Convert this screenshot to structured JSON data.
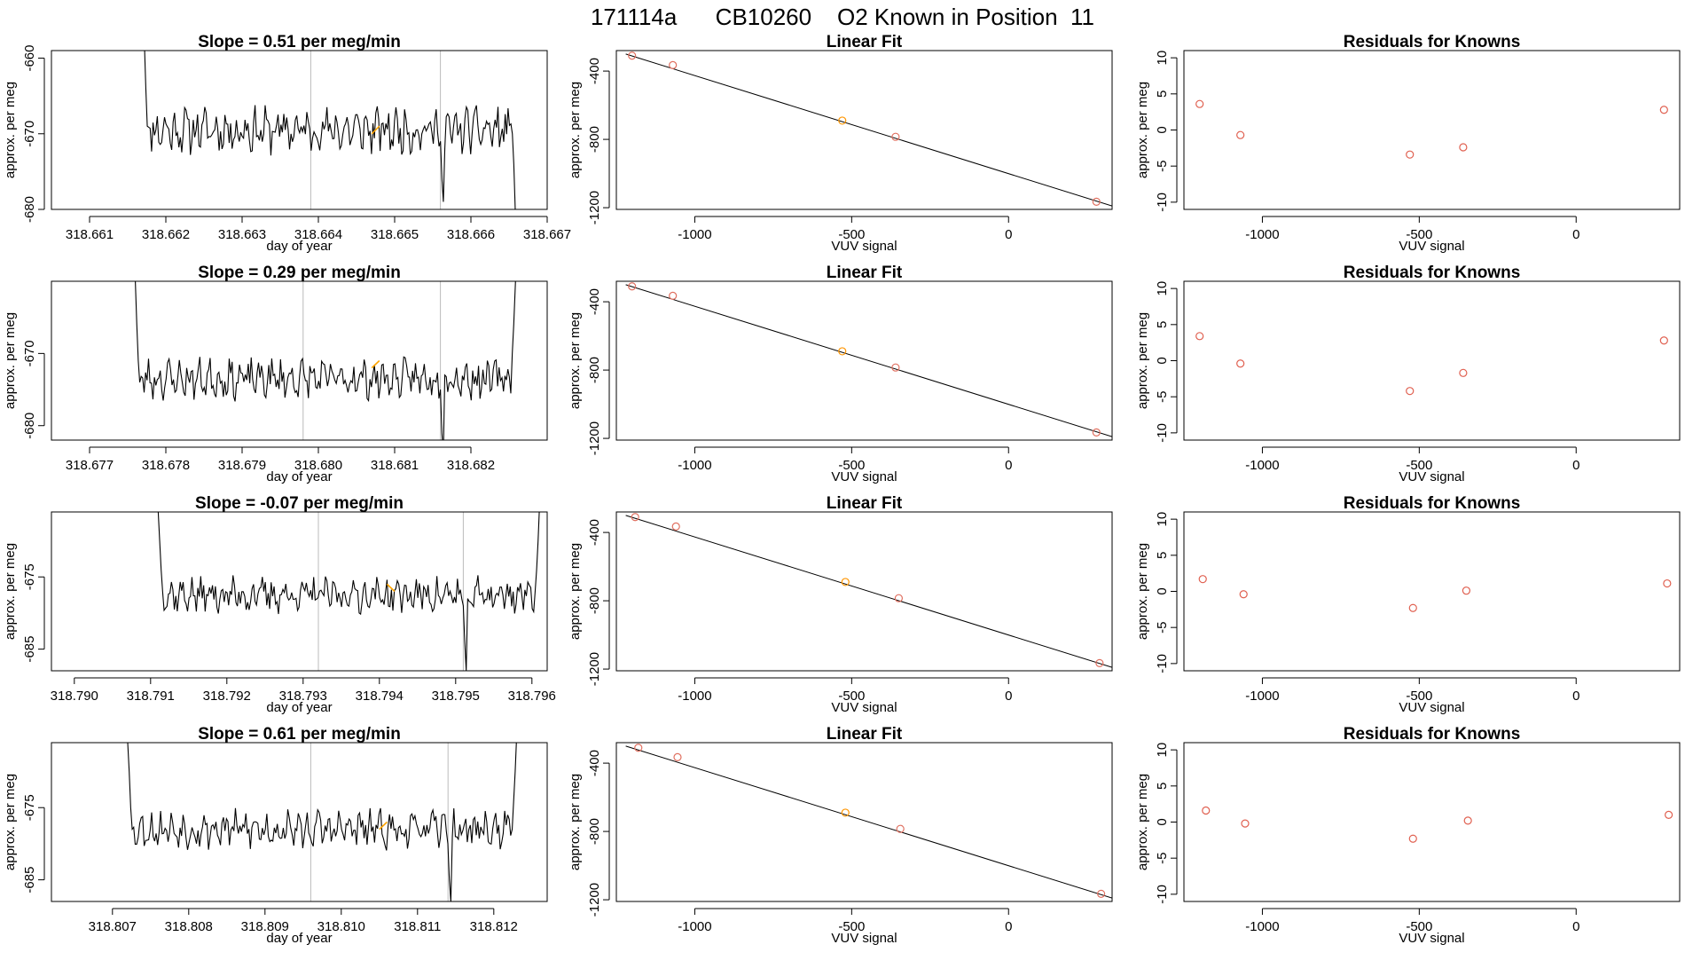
{
  "page": {
    "title": "171114a      CB10260    O2 Known in Position  11"
  },
  "colors": {
    "line": "#000000",
    "frame": "#000000",
    "marker_line": "#bbbbbb",
    "highlight": "#ffa500",
    "known_point": "#e07060",
    "sample_point": "#ff9500",
    "residual_point": "#e06050"
  },
  "chart_data": [
    {
      "type": "line",
      "panel": "timeseries",
      "title": "Slope =  0.51  per meg/min",
      "xlabel": "day of year",
      "ylabel": "approx. per meg",
      "xlim": [
        318.6605,
        318.667
      ],
      "ylim": [
        -680,
        -659
      ],
      "xticks": [
        318.661,
        318.662,
        318.663,
        318.664,
        318.665,
        318.666,
        318.667
      ],
      "xtick_labels": [
        "318.661",
        "318.662",
        "318.663",
        "318.664",
        "318.665",
        "318.666",
        "318.667"
      ],
      "yticks": [
        -660,
        -670,
        -680
      ],
      "ytick_labels": [
        "-660",
        "-670",
        "-680"
      ],
      "vlines": [
        318.6639,
        318.6656
      ],
      "x_start": 318.6617,
      "x_end": 318.6666,
      "baseline": -669.5,
      "noise": 2.2,
      "seed": 11,
      "start_values": [
        -655,
        -658,
        -664,
        -669
      ],
      "end_values": [
        -670,
        -674,
        -680,
        -685
      ],
      "dip_x": 318.6656,
      "dip_values": [
        -671,
        -676,
        -679,
        -672
      ],
      "highlight_x": [
        318.6647,
        318.6648
      ],
      "highlight_y": [
        -670,
        -669
      ]
    },
    {
      "type": "scatter",
      "panel": "linearfit",
      "title": "Linear Fit",
      "xlabel": "VUV signal",
      "ylabel": "approx. per meg",
      "xlim": [
        -1250,
        330
      ],
      "ylim": [
        -1210,
        -280
      ],
      "xticks": [
        -1000,
        -500,
        0
      ],
      "xtick_labels": [
        "-1000",
        "-500",
        "0"
      ],
      "yticks": [
        -400,
        -800,
        -1200
      ],
      "ytick_labels": [
        "-400",
        "-800",
        "-1200"
      ],
      "fit_line": {
        "x": [
          -1220,
          330
        ],
        "y": [
          -300,
          -1190
        ]
      },
      "points": [
        {
          "x": -1200,
          "y": -310,
          "kind": "known"
        },
        {
          "x": -1070,
          "y": -365,
          "kind": "known"
        },
        {
          "x": -530,
          "y": -690,
          "kind": "sample"
        },
        {
          "x": -360,
          "y": -785,
          "kind": "known"
        },
        {
          "x": 280,
          "y": -1165,
          "kind": "known"
        }
      ]
    },
    {
      "type": "scatter",
      "panel": "residuals",
      "title": "Residuals for Knowns",
      "xlabel": "VUV signal",
      "ylabel": "approx. per meg",
      "xlim": [
        -1250,
        330
      ],
      "ylim": [
        -11,
        11
      ],
      "xticks": [
        -1000,
        -500,
        0
      ],
      "xtick_labels": [
        "-1000",
        "-500",
        "0"
      ],
      "yticks": [
        10,
        5,
        0,
        -5,
        -10
      ],
      "ytick_labels": [
        "10",
        "5",
        "0",
        "-5",
        "-10"
      ],
      "x": [
        -1200,
        -1070,
        -530,
        -360,
        280
      ],
      "y": [
        3.6,
        -0.7,
        -3.4,
        -2.4,
        2.8
      ]
    },
    {
      "type": "line",
      "panel": "timeseries",
      "title": "Slope =  0.29  per meg/min",
      "xlabel": "day of year",
      "ylabel": "approx. per meg",
      "xlim": [
        318.6765,
        318.683
      ],
      "ylim": [
        -682,
        -660
      ],
      "xticks": [
        318.677,
        318.678,
        318.679,
        318.68,
        318.681,
        318.682
      ],
      "xtick_labels": [
        "318.677",
        "318.678",
        "318.679",
        "318.680",
        "318.681",
        "318.682"
      ],
      "yticks": [
        -670,
        -680
      ],
      "ytick_labels": [
        "-670",
        "-680"
      ],
      "vlines": [
        318.6798,
        318.6816
      ],
      "x_start": 318.6776,
      "x_end": 318.6826,
      "baseline": -673.5,
      "noise": 2.0,
      "seed": 23,
      "start_values": [
        -660,
        -666,
        -671,
        -674
      ],
      "end_values": [
        -670,
        -666,
        -661,
        -656
      ],
      "dip_x": 318.6816,
      "dip_values": [
        -675,
        -681,
        -684,
        -673
      ],
      "highlight_x": [
        318.6807,
        318.6808
      ],
      "highlight_y": [
        -672,
        -671
      ]
    },
    {
      "type": "scatter",
      "panel": "linearfit",
      "title": "Linear Fit",
      "xlabel": "VUV signal",
      "ylabel": "approx. per meg",
      "xlim": [
        -1250,
        330
      ],
      "ylim": [
        -1210,
        -280
      ],
      "xticks": [
        -1000,
        -500,
        0
      ],
      "xtick_labels": [
        "-1000",
        "-500",
        "0"
      ],
      "yticks": [
        -400,
        -800,
        -1200
      ],
      "ytick_labels": [
        "-400",
        "-800",
        "-1200"
      ],
      "fit_line": {
        "x": [
          -1220,
          330
        ],
        "y": [
          -300,
          -1190
        ]
      },
      "points": [
        {
          "x": -1200,
          "y": -310,
          "kind": "known"
        },
        {
          "x": -1070,
          "y": -365,
          "kind": "known"
        },
        {
          "x": -530,
          "y": -690,
          "kind": "sample"
        },
        {
          "x": -360,
          "y": -785,
          "kind": "known"
        },
        {
          "x": 280,
          "y": -1165,
          "kind": "known"
        }
      ]
    },
    {
      "type": "scatter",
      "panel": "residuals",
      "title": "Residuals for Knowns",
      "xlabel": "VUV signal",
      "ylabel": "approx. per meg",
      "xlim": [
        -1250,
        330
      ],
      "ylim": [
        -11,
        11
      ],
      "xticks": [
        -1000,
        -500,
        0
      ],
      "xtick_labels": [
        "-1000",
        "-500",
        "0"
      ],
      "yticks": [
        10,
        5,
        0,
        -5,
        -10
      ],
      "ytick_labels": [
        "10",
        "5",
        "0",
        "-5",
        "-10"
      ],
      "x": [
        -1200,
        -1070,
        -530,
        -360,
        280
      ],
      "y": [
        3.4,
        -0.4,
        -4.2,
        -1.7,
        2.8
      ]
    },
    {
      "type": "line",
      "panel": "timeseries",
      "title": "Slope =  -0.07  per meg/min",
      "xlabel": "day of year",
      "ylabel": "approx. per meg",
      "xlim": [
        318.7897,
        318.7962
      ],
      "ylim": [
        -688,
        -666
      ],
      "xticks": [
        318.79,
        318.791,
        318.792,
        318.793,
        318.794,
        318.795,
        318.796
      ],
      "xtick_labels": [
        "318.790",
        "318.791",
        "318.792",
        "318.793",
        "318.794",
        "318.795",
        "318.796"
      ],
      "yticks": [
        -675,
        -685
      ],
      "ytick_labels": [
        "-675",
        "-685"
      ],
      "vlines": [
        318.7932,
        318.7951
      ],
      "x_start": 318.7911,
      "x_end": 318.7961,
      "baseline": -677.5,
      "noise": 1.8,
      "seed": 37,
      "start_values": [
        -666,
        -670,
        -674,
        -677
      ],
      "end_values": [
        -677,
        -674,
        -670,
        -665
      ],
      "dip_x": 318.7951,
      "dip_values": [
        -679,
        -684,
        -688,
        -678
      ],
      "highlight_x": [
        318.7941,
        318.7942
      ],
      "highlight_y": [
        -676,
        -677
      ]
    },
    {
      "type": "scatter",
      "panel": "linearfit",
      "title": "Linear Fit",
      "xlabel": "VUV signal",
      "ylabel": "approx. per meg",
      "xlim": [
        -1250,
        330
      ],
      "ylim": [
        -1210,
        -280
      ],
      "xticks": [
        -1000,
        -500,
        0
      ],
      "xtick_labels": [
        "-1000",
        "-500",
        "0"
      ],
      "yticks": [
        -400,
        -800,
        -1200
      ],
      "ytick_labels": [
        "-400",
        "-800",
        "-1200"
      ],
      "fit_line": {
        "x": [
          -1220,
          330
        ],
        "y": [
          -300,
          -1190
        ]
      },
      "points": [
        {
          "x": -1190,
          "y": -310,
          "kind": "known"
        },
        {
          "x": -1060,
          "y": -365,
          "kind": "known"
        },
        {
          "x": -520,
          "y": -690,
          "kind": "sample"
        },
        {
          "x": -350,
          "y": -785,
          "kind": "known"
        },
        {
          "x": 290,
          "y": -1165,
          "kind": "known"
        }
      ]
    },
    {
      "type": "scatter",
      "panel": "residuals",
      "title": "Residuals for Knowns",
      "xlabel": "VUV signal",
      "ylabel": "approx. per meg",
      "xlim": [
        -1250,
        330
      ],
      "ylim": [
        -11,
        11
      ],
      "xticks": [
        -1000,
        -500,
        0
      ],
      "xtick_labels": [
        "-1000",
        "-500",
        "0"
      ],
      "yticks": [
        10,
        5,
        0,
        -5,
        -10
      ],
      "ytick_labels": [
        "10",
        "5",
        "0",
        "-5",
        "-10"
      ],
      "x": [
        -1190,
        -1060,
        -520,
        -350,
        290
      ],
      "y": [
        1.7,
        -0.4,
        -2.3,
        0.1,
        1.1
      ]
    },
    {
      "type": "line",
      "panel": "timeseries",
      "title": "Slope =  0.61  per meg/min",
      "xlabel": "day of year",
      "ylabel": "approx. per meg",
      "xlim": [
        318.8062,
        318.8127
      ],
      "ylim": [
        -688,
        -666
      ],
      "xticks": [
        318.807,
        318.808,
        318.809,
        318.81,
        318.811,
        318.812
      ],
      "xtick_labels": [
        "318.807",
        "318.808",
        "318.809",
        "318.810",
        "318.811",
        "318.812"
      ],
      "yticks": [
        -675,
        -685
      ],
      "ytick_labels": [
        "-675",
        "-685"
      ],
      "vlines": [
        318.8096,
        318.8114
      ],
      "x_start": 318.8072,
      "x_end": 318.8123,
      "baseline": -678,
      "noise": 1.9,
      "seed": 53,
      "start_values": [
        -666,
        -670,
        -675,
        -678
      ],
      "end_values": [
        -678,
        -674,
        -670,
        -665
      ],
      "dip_x": 318.8114,
      "dip_values": [
        -680,
        -685,
        -688,
        -679
      ],
      "highlight_x": [
        318.8105,
        318.8106
      ],
      "highlight_y": [
        -678,
        -677
      ]
    },
    {
      "type": "scatter",
      "panel": "linearfit",
      "title": "Linear Fit",
      "xlabel": "VUV signal",
      "ylabel": "approx. per meg",
      "xlim": [
        -1250,
        330
      ],
      "ylim": [
        -1210,
        -280
      ],
      "xticks": [
        -1000,
        -500,
        0
      ],
      "xtick_labels": [
        "-1000",
        "-500",
        "0"
      ],
      "yticks": [
        -400,
        -800,
        -1200
      ],
      "ytick_labels": [
        "-400",
        "-800",
        "-1200"
      ],
      "fit_line": {
        "x": [
          -1220,
          330
        ],
        "y": [
          -300,
          -1190
        ]
      },
      "points": [
        {
          "x": -1180,
          "y": -310,
          "kind": "known"
        },
        {
          "x": -1055,
          "y": -365,
          "kind": "known"
        },
        {
          "x": -520,
          "y": -690,
          "kind": "sample"
        },
        {
          "x": -345,
          "y": -785,
          "kind": "known"
        },
        {
          "x": 295,
          "y": -1165,
          "kind": "known"
        }
      ]
    },
    {
      "type": "scatter",
      "panel": "residuals",
      "title": "Residuals for Knowns",
      "xlabel": "VUV signal",
      "ylabel": "approx. per meg",
      "xlim": [
        -1250,
        330
      ],
      "ylim": [
        -11,
        11
      ],
      "xticks": [
        -1000,
        -500,
        0
      ],
      "xtick_labels": [
        "-1000",
        "-500",
        "0"
      ],
      "yticks": [
        10,
        5,
        0,
        -5,
        -10
      ],
      "ytick_labels": [
        "10",
        "5",
        "0",
        "-5",
        "-10"
      ],
      "x": [
        -1180,
        -1055,
        -520,
        -345,
        295
      ],
      "y": [
        1.6,
        -0.2,
        -2.3,
        0.2,
        1.0
      ]
    }
  ]
}
